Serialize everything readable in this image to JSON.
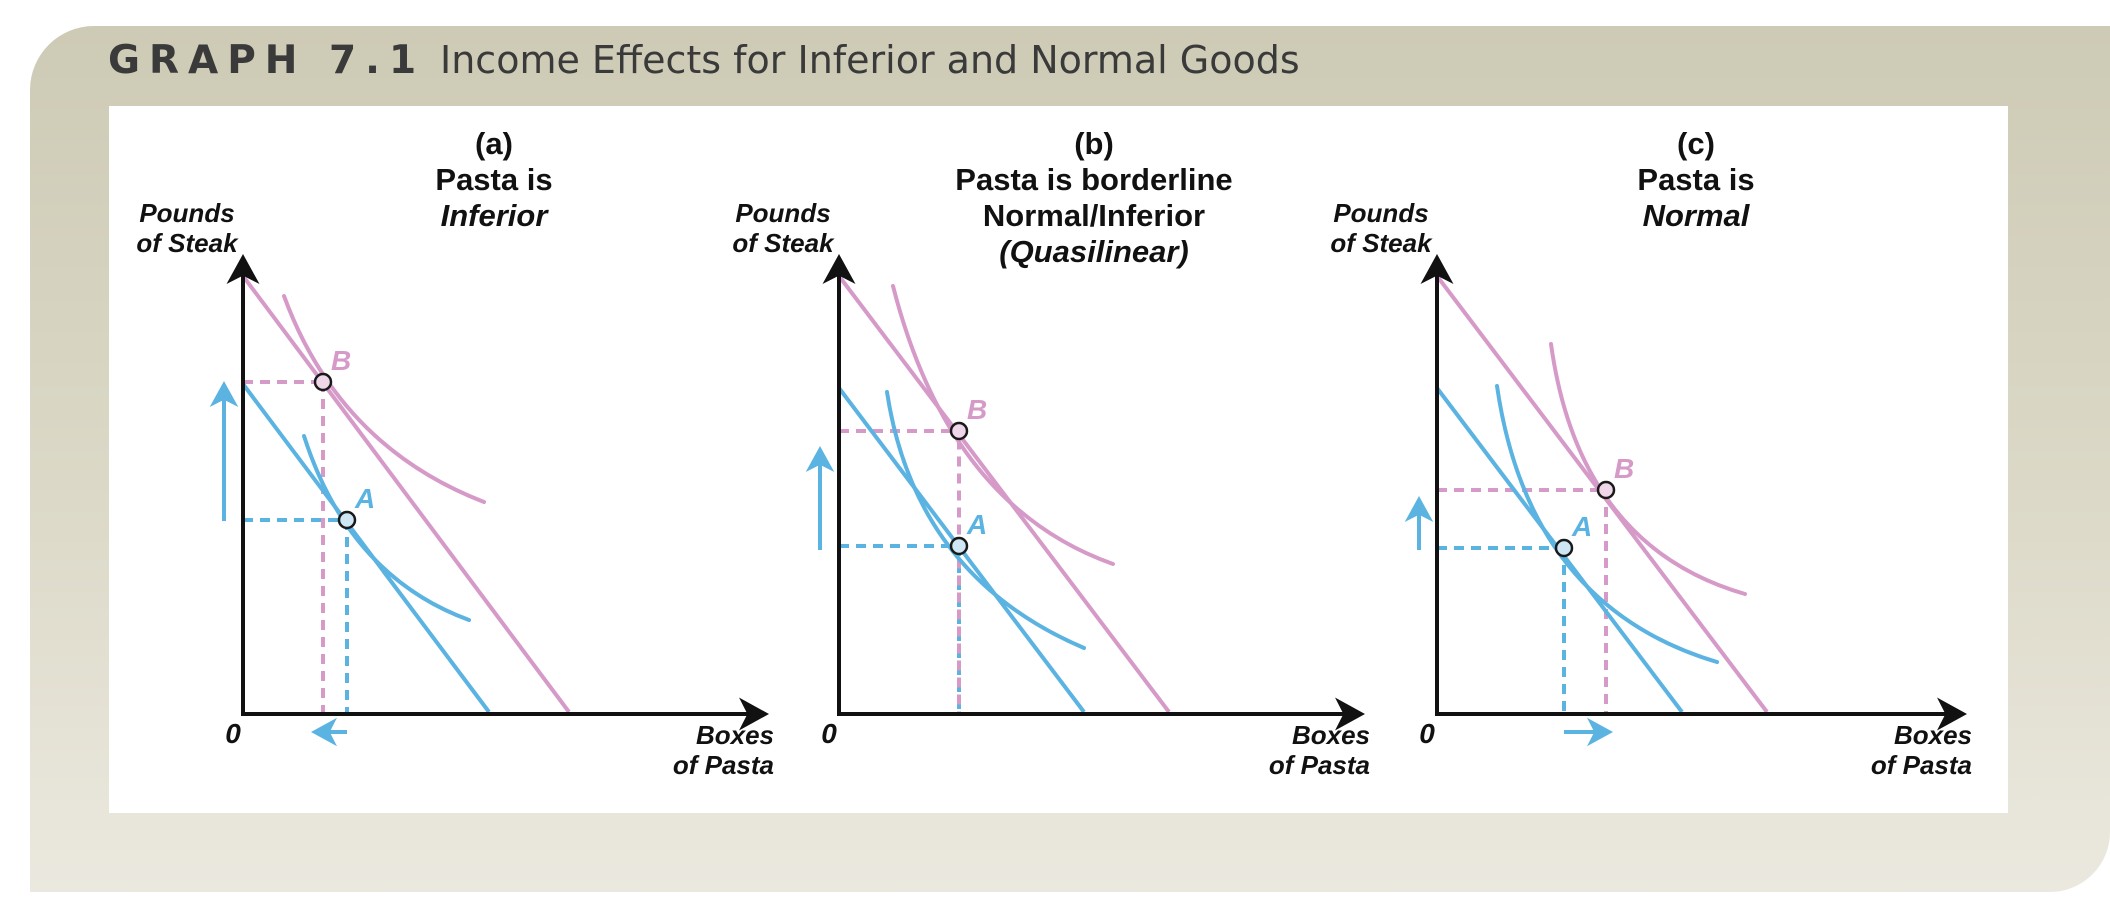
{
  "header": {
    "label": "GRAPH 7.1",
    "caption": "Income Effects for Inferior and Normal Goods"
  },
  "colors": {
    "blue": "#5bb3e1",
    "pink": "#d69ac8",
    "axis": "#111111",
    "frame": "#d3d0bd"
  },
  "panels": [
    {
      "letter": "(a)",
      "title_lines": [
        {
          "text": "Pasta is",
          "italic": false
        },
        {
          "text": "Inferior",
          "italic": true
        }
      ],
      "y_axis_label": [
        "Pounds",
        "of Steak"
      ],
      "x_axis_label": [
        "Boxes",
        "of Pasta"
      ],
      "origin": "0",
      "point_a_label": "A",
      "point_b_label": "B",
      "steak_change": "increase",
      "pasta_change": "decrease"
    },
    {
      "letter": "(b)",
      "title_lines": [
        {
          "text": "Pasta is borderline",
          "italic": false
        },
        {
          "text": "Normal/Inferior",
          "italic": false
        },
        {
          "text": "(Quasilinear)",
          "italic": true
        }
      ],
      "y_axis_label": [
        "Pounds",
        "of Steak"
      ],
      "x_axis_label": [
        "Boxes",
        "of Pasta"
      ],
      "origin": "0",
      "point_a_label": "A",
      "point_b_label": "B",
      "steak_change": "increase",
      "pasta_change": "none"
    },
    {
      "letter": "(c)",
      "title_lines": [
        {
          "text": "Pasta is",
          "italic": false
        },
        {
          "text": "Normal",
          "italic": true
        }
      ],
      "y_axis_label": [
        "Pounds",
        "of Steak"
      ],
      "x_axis_label": [
        "Boxes",
        "of Pasta"
      ],
      "origin": "0",
      "point_a_label": "A",
      "point_b_label": "B",
      "steak_change": "increase",
      "pasta_change": "increase"
    }
  ]
}
